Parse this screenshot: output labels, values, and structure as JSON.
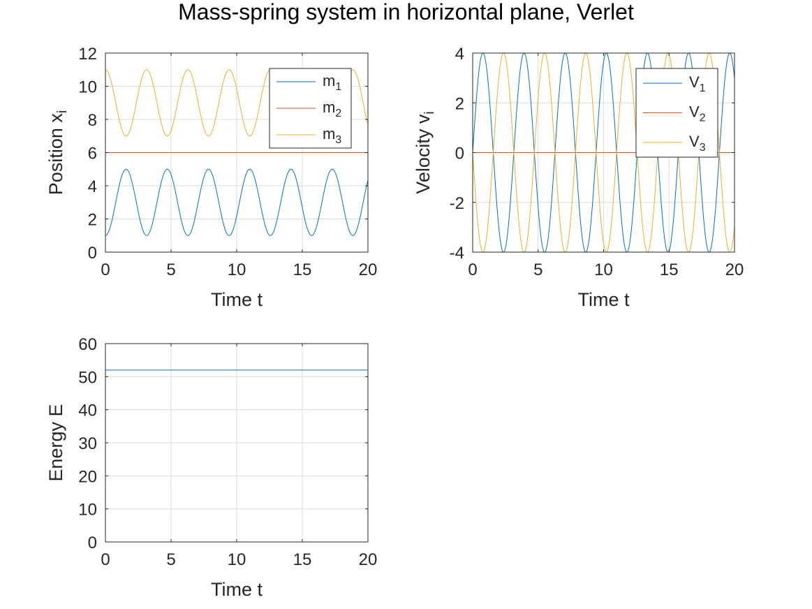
{
  "figure": {
    "title": "Mass-spring system in horizontal plane, Verlet"
  },
  "chart_data": [
    {
      "type": "line",
      "xlabel": "Time t",
      "ylabel_main": "Position x",
      "ylabel_sub": "i",
      "xlim": [
        0,
        20
      ],
      "ylim": [
        0,
        12
      ],
      "xticks": [
        "0",
        "5",
        "10",
        "15",
        "20"
      ],
      "yticks": [
        "0",
        "2",
        "4",
        "6",
        "8",
        "10",
        "12"
      ],
      "grid": true,
      "legend_position": "top-right",
      "series": [
        {
          "name_main": "m",
          "name_sub": "1",
          "color": "#0072BD",
          "type": "cos",
          "center": 3,
          "amplitude": 2,
          "omega": 2,
          "phase": 3.14159
        },
        {
          "name_main": "m",
          "name_sub": "2",
          "color": "#D95319",
          "type": "constant",
          "value": 6
        },
        {
          "name_main": "m",
          "name_sub": "3",
          "color": "#EDB120",
          "type": "cos",
          "center": 9,
          "amplitude": 2,
          "omega": 2,
          "phase": 0
        }
      ]
    },
    {
      "type": "line",
      "xlabel": "Time t",
      "ylabel_main": "Velocity v",
      "ylabel_sub": "i",
      "xlim": [
        0,
        20
      ],
      "ylim": [
        -4,
        4
      ],
      "xticks": [
        "0",
        "5",
        "10",
        "15",
        "20"
      ],
      "yticks": [
        "-4",
        "-2",
        "0",
        "2",
        "4"
      ],
      "grid": true,
      "legend_position": "top-right",
      "series": [
        {
          "name_main": "V",
          "name_sub": "1",
          "color": "#0072BD",
          "type": "sin",
          "center": 0,
          "amplitude": 4,
          "omega": 2,
          "phase": 0
        },
        {
          "name_main": "V",
          "name_sub": "2",
          "color": "#D95319",
          "type": "constant",
          "value": 0
        },
        {
          "name_main": "V",
          "name_sub": "3",
          "color": "#EDB120",
          "type": "sin",
          "center": 0,
          "amplitude": 4,
          "omega": 2,
          "phase": 3.14159
        }
      ]
    },
    {
      "type": "line",
      "xlabel": "Time t",
      "ylabel_main": "Energy E",
      "ylabel_sub": "",
      "xlim": [
        0,
        20
      ],
      "ylim": [
        0,
        60
      ],
      "xticks": [
        "0",
        "5",
        "10",
        "15",
        "20"
      ],
      "yticks": [
        "0",
        "10",
        "20",
        "30",
        "40",
        "50",
        "60"
      ],
      "grid": true,
      "legend_position": "none",
      "series": [
        {
          "color": "#0072BD",
          "type": "constant",
          "value": 52
        }
      ]
    }
  ]
}
